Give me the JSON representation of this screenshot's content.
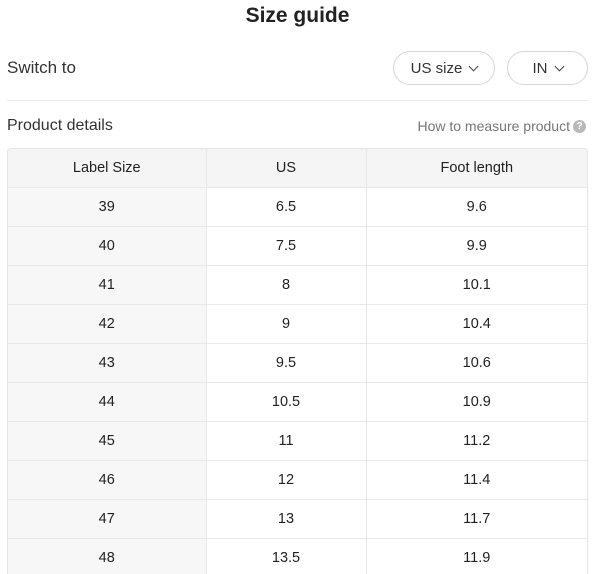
{
  "title": "Size guide",
  "switch": {
    "label": "Switch to",
    "size_system": "US size",
    "unit": "IN"
  },
  "details": {
    "label": "Product details",
    "measure_link": "How to measure product",
    "help_glyph": "?"
  },
  "table": {
    "headers": [
      "Label Size",
      "US",
      "Foot length"
    ],
    "rows": [
      [
        "39",
        "6.5",
        "9.6"
      ],
      [
        "40",
        "7.5",
        "9.9"
      ],
      [
        "41",
        "8",
        "10.1"
      ],
      [
        "42",
        "9",
        "10.4"
      ],
      [
        "43",
        "9.5",
        "10.6"
      ],
      [
        "44",
        "10.5",
        "10.9"
      ],
      [
        "45",
        "11",
        "11.2"
      ],
      [
        "46",
        "12",
        "11.4"
      ],
      [
        "47",
        "13",
        "11.7"
      ],
      [
        "48",
        "13.5",
        "11.9"
      ]
    ]
  }
}
